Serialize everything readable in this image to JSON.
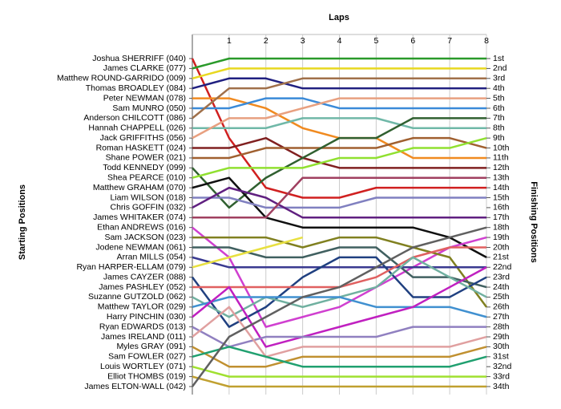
{
  "chart_data": {
    "type": "line",
    "title": "Laps",
    "y_label": "Starting Positions",
    "y2_label": "Finishing Positions",
    "x": [
      0,
      1,
      2,
      3,
      4,
      5,
      6,
      7,
      8
    ],
    "xlim": [
      0,
      8
    ],
    "xticks": [
      1,
      2,
      3,
      4,
      5,
      6,
      7,
      8
    ],
    "ylim": [
      34,
      1
    ],
    "grid": true,
    "finish_labels": [
      "1st",
      "2nd",
      "3rd",
      "4th",
      "5th",
      "6th",
      "7th",
      "8th",
      "9th",
      "10th",
      "11th",
      "12th",
      "13th",
      "14th",
      "15th",
      "16th",
      "17th",
      "18th",
      "19th",
      "20th",
      "21st",
      "22nd",
      "23rd",
      "24th",
      "25th",
      "26th",
      "27th",
      "28th",
      "29th",
      "30th",
      "31st",
      "32nd",
      "33rd",
      "34th"
    ],
    "series": [
      {
        "name": "Joshua SHERRIFF (040)",
        "color": "#d02020",
        "values": [
          1,
          9,
          14,
          15,
          15,
          14,
          14,
          14,
          14
        ]
      },
      {
        "name": "James CLARKE (077)",
        "color": "#2a9a2a",
        "values": [
          2,
          1,
          1,
          1,
          1,
          1,
          1,
          1,
          1
        ]
      },
      {
        "name": "Matthew ROUND-GARRIDO (009)",
        "color": "#e8d820",
        "values": [
          3,
          2,
          2,
          2,
          2,
          2,
          2,
          2,
          2
        ]
      },
      {
        "name": "Thomas BROADLEY (084)",
        "color": "#202080",
        "values": [
          4,
          3,
          3,
          4,
          4,
          4,
          4,
          4,
          4
        ]
      },
      {
        "name": "Peter NEWMAN (078)",
        "color": "#f08a20",
        "values": [
          5,
          5,
          6,
          8,
          9,
          9,
          11,
          11,
          11
        ]
      },
      {
        "name": "Sam MUNRO (050)",
        "color": "#3a8ad8",
        "values": [
          6,
          6,
          5,
          5,
          6,
          6,
          6,
          6,
          6
        ]
      },
      {
        "name": "Anderson CHILCOTT (086)",
        "color": "#a0704a",
        "values": [
          7,
          4,
          4,
          3,
          3,
          3,
          3,
          3,
          3
        ]
      },
      {
        "name": "Hannah CHAPPELL (026)",
        "color": "#70b8a8",
        "values": [
          8,
          8,
          8,
          7,
          7,
          7,
          8,
          8,
          8
        ]
      },
      {
        "name": "Jack GRIFFITHS (056)",
        "color": "#e8a080",
        "values": [
          9,
          7,
          7,
          6,
          5,
          5,
          5,
          5,
          5
        ]
      },
      {
        "name": "Roman HASKETT (024)",
        "color": "#802020",
        "values": [
          10,
          10,
          9,
          11,
          12,
          12,
          12,
          12,
          12
        ]
      },
      {
        "name": "Shane POWER (021)",
        "color": "#a06030",
        "values": [
          11,
          11,
          10,
          10,
          10,
          10,
          9,
          9,
          10
        ]
      },
      {
        "name": "Todd KENNEDY (099)",
        "color": "#306030",
        "values": [
          12,
          16,
          13,
          11,
          9,
          9,
          7,
          7,
          7
        ]
      },
      {
        "name": "Shea PEARCE (010)",
        "color": "#90e030",
        "values": [
          13,
          12,
          12,
          12,
          11,
          11,
          10,
          10,
          9
        ]
      },
      {
        "name": "Matthew GRAHAM (070)",
        "color": "#101010",
        "values": [
          14,
          13,
          17,
          18,
          18,
          18,
          18,
          19,
          21
        ]
      },
      {
        "name": "Liam WILSON (018)",
        "color": "#8080c0",
        "values": [
          15,
          15,
          16,
          16,
          16,
          15,
          15,
          15,
          15
        ]
      },
      {
        "name": "Chris GOFFIN (032)",
        "color": "#602080",
        "values": [
          16,
          14,
          15,
          17,
          17,
          17,
          17,
          17,
          17
        ]
      },
      {
        "name": "James WHITAKER (074)",
        "color": "#a04060",
        "values": [
          17,
          17,
          17,
          13,
          13,
          13,
          13,
          13,
          13
        ]
      },
      {
        "name": "Ethan ANDREWS (016)",
        "color": "#d040d0",
        "values": [
          18,
          21,
          28,
          27,
          26,
          24,
          22,
          20,
          19
        ]
      },
      {
        "name": "Sam JACKSON (023)",
        "color": "#808020",
        "values": [
          19,
          19,
          19,
          20,
          19,
          19,
          20,
          21,
          26
        ]
      },
      {
        "name": "Jodene NEWMAN (061)",
        "color": "#406060",
        "values": [
          20,
          20,
          21,
          21,
          20,
          20,
          23,
          23,
          24
        ]
      },
      {
        "name": "Arran MILLS (054)",
        "color": "#3a3a90",
        "values": [
          21,
          22,
          22,
          22,
          22,
          22,
          22,
          22,
          22
        ]
      },
      {
        "name": "Ryan HARPER-ELLAM (079)",
        "color": "#e8e040",
        "values": [
          22,
          21,
          20,
          19,
          null,
          null,
          null,
          null,
          null
        ]
      },
      {
        "name": "James CAYZER (088)",
        "color": "#204080",
        "values": [
          23,
          28,
          26,
          23,
          21,
          21,
          25,
          25,
          23
        ]
      },
      {
        "name": "James PASHLEY (052)",
        "color": "#e06060",
        "values": [
          24,
          24,
          24,
          24,
          24,
          23,
          21,
          20,
          20
        ]
      },
      {
        "name": "Suzanne GUTZOLD (062)",
        "color": "#70b0a0",
        "values": [
          25,
          27,
          25,
          26,
          25,
          24,
          21,
          23,
          25
        ]
      },
      {
        "name": "Matthew TAYLOR (029)",
        "color": "#4090d0",
        "values": [
          26,
          25,
          25,
          25,
          25,
          26,
          26,
          26,
          27
        ]
      },
      {
        "name": "Harry PINCHIN (030)",
        "color": "#c020c0",
        "values": [
          27,
          24,
          30,
          29,
          28,
          27,
          26,
          24,
          22
        ]
      },
      {
        "name": "Ryan EDWARDS (013)",
        "color": "#9080c0",
        "values": [
          28,
          30,
          29,
          29,
          29,
          29,
          28,
          28,
          28
        ]
      },
      {
        "name": "James IRELAND (011)",
        "color": "#e0a0a0",
        "values": [
          29,
          26,
          31,
          30,
          30,
          30,
          30,
          30,
          29
        ]
      },
      {
        "name": "Myles GRAY (091)",
        "color": "#c09030",
        "values": [
          30,
          32,
          32,
          31,
          31,
          31,
          31,
          31,
          30
        ]
      },
      {
        "name": "Sam FOWLER (027)",
        "color": "#20a070",
        "values": [
          31,
          30,
          31,
          32,
          32,
          32,
          32,
          32,
          31
        ]
      },
      {
        "name": "Louis WORTLEY (071)",
        "color": "#a0e030",
        "values": [
          32,
          33,
          33,
          33,
          33,
          33,
          33,
          33,
          33
        ]
      },
      {
        "name": "Elliot THOMBS (019)",
        "color": "#c0a030",
        "values": [
          33,
          34,
          34,
          34,
          34,
          34,
          34,
          34,
          34
        ]
      },
      {
        "name": "James ELTON-WALL (042)",
        "color": "#606060",
        "values": [
          34,
          29,
          27,
          25,
          24,
          22,
          20,
          19,
          18
        ]
      }
    ]
  }
}
